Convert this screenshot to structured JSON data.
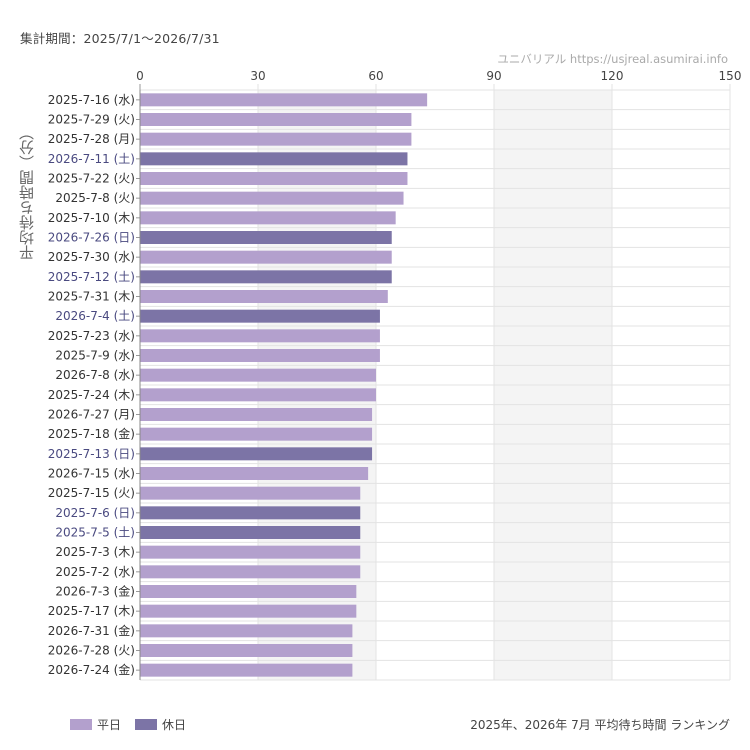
{
  "header": {
    "period": "集計期間：2025/7/1〜2026/7/31",
    "credit": "ユニバリアル  https://usjreal.asumirai.info"
  },
  "colors": {
    "weekday": "#b3a0cd",
    "holiday": "#7c74a6",
    "holiday_label": "#4a4a80",
    "band": "#f4f4f4",
    "grid": "#e3e3e3"
  },
  "legend": [
    {
      "label": "平日",
      "color": "#b3a0cd"
    },
    {
      "label": "休日",
      "color": "#7c74a6"
    }
  ],
  "chart_data": {
    "type": "bar",
    "orientation": "horizontal",
    "title": "2025年、2026年 7月 平均待ち時間 ランキング",
    "ylabel": "平均待ち時間（分）",
    "xlim": [
      0,
      150
    ],
    "xticks": [
      "0",
      "30",
      "60",
      "90",
      "120",
      "150"
    ],
    "grid": true,
    "legend_position": "bottom-left",
    "categories": [
      "2025-7-16 (水)",
      "2025-7-29 (火)",
      "2025-7-28 (月)",
      "2026-7-11 (土)",
      "2025-7-22 (火)",
      "2025-7-8 (火)",
      "2025-7-10 (木)",
      "2026-7-26 (日)",
      "2025-7-30 (水)",
      "2025-7-12 (土)",
      "2025-7-31 (木)",
      "2026-7-4 (土)",
      "2025-7-23 (水)",
      "2025-7-9 (水)",
      "2026-7-8 (水)",
      "2025-7-24 (木)",
      "2026-7-27 (月)",
      "2025-7-18 (金)",
      "2025-7-13 (日)",
      "2026-7-15 (水)",
      "2025-7-15 (火)",
      "2025-7-6 (日)",
      "2025-7-5 (土)",
      "2025-7-3 (木)",
      "2025-7-2 (水)",
      "2026-7-3 (金)",
      "2025-7-17 (木)",
      "2026-7-31 (金)",
      "2026-7-28 (火)",
      "2026-7-24 (金)"
    ],
    "values": [
      73,
      69,
      69,
      68,
      68,
      67,
      65,
      64,
      64,
      64,
      63,
      61,
      61,
      61,
      60,
      60,
      59,
      59,
      59,
      58,
      56,
      56,
      56,
      56,
      56,
      55,
      55,
      54,
      54,
      54
    ],
    "series_type": [
      "平日",
      "平日",
      "平日",
      "休日",
      "平日",
      "平日",
      "平日",
      "休日",
      "平日",
      "休日",
      "平日",
      "休日",
      "平日",
      "平日",
      "平日",
      "平日",
      "平日",
      "平日",
      "休日",
      "平日",
      "平日",
      "休日",
      "休日",
      "平日",
      "平日",
      "平日",
      "平日",
      "平日",
      "平日",
      "平日"
    ]
  }
}
